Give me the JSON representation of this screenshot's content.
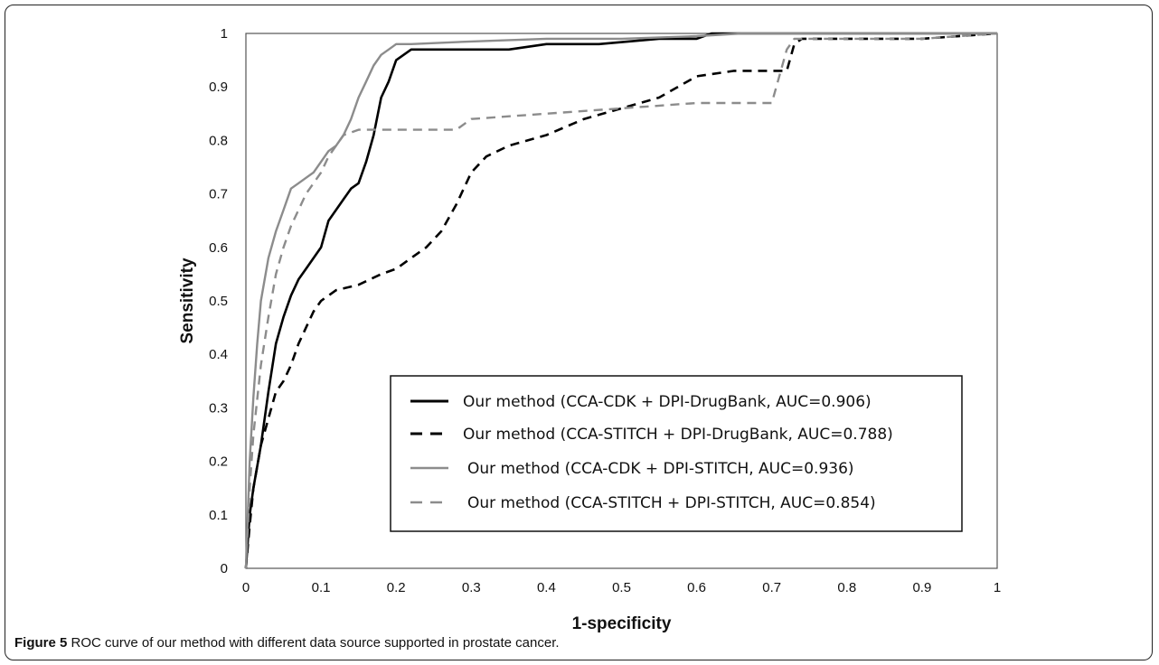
{
  "caption": {
    "label": "Figure 5",
    "text": "ROC curve of our method with different data source supported in prostate cancer."
  },
  "chart_data": {
    "type": "line",
    "title": "",
    "xlabel": "1-specificity",
    "ylabel": "Sensitivity",
    "xlim": [
      0,
      1
    ],
    "ylim": [
      0,
      1
    ],
    "xticks": [
      "0",
      "0.1",
      "0.2",
      "0.3",
      "0.4",
      "0.5",
      "0.6",
      "0.7",
      "0.8",
      "0.9",
      "1"
    ],
    "yticks": [
      "0",
      "0.1",
      "0.2",
      "0.3",
      "0.4",
      "0.5",
      "0.6",
      "0.7",
      "0.8",
      "0.9",
      "1"
    ],
    "grid": false,
    "legend_position": "bottom-right",
    "series": [
      {
        "name": "Our method (CCA-CDK + DPI-DrugBank, AUC=0.906)",
        "color": "#000000",
        "dash": "solid",
        "x": [
          0,
          0.005,
          0.01,
          0.02,
          0.03,
          0.04,
          0.05,
          0.06,
          0.07,
          0.08,
          0.09,
          0.1,
          0.11,
          0.12,
          0.13,
          0.14,
          0.15,
          0.16,
          0.17,
          0.18,
          0.19,
          0.2,
          0.21,
          0.22,
          0.25,
          0.3,
          0.35,
          0.4,
          0.47,
          0.55,
          0.6,
          0.62,
          0.65,
          0.7,
          1.0
        ],
        "y": [
          0,
          0.1,
          0.15,
          0.23,
          0.33,
          0.42,
          0.47,
          0.51,
          0.54,
          0.56,
          0.58,
          0.6,
          0.65,
          0.67,
          0.69,
          0.71,
          0.72,
          0.76,
          0.81,
          0.88,
          0.91,
          0.95,
          0.96,
          0.97,
          0.97,
          0.97,
          0.97,
          0.98,
          0.98,
          0.99,
          0.99,
          1.0,
          1.0,
          1.0,
          1.0
        ]
      },
      {
        "name": "Our method (CCA-STITCH + DPI-DrugBank, AUC=0.788)",
        "color": "#000000",
        "dash": "dashed",
        "x": [
          0,
          0.005,
          0.01,
          0.02,
          0.03,
          0.04,
          0.05,
          0.06,
          0.07,
          0.08,
          0.09,
          0.1,
          0.12,
          0.15,
          0.18,
          0.2,
          0.22,
          0.24,
          0.26,
          0.28,
          0.3,
          0.32,
          0.35,
          0.4,
          0.45,
          0.5,
          0.55,
          0.6,
          0.65,
          0.72,
          0.73,
          0.74,
          0.8,
          0.9,
          1.0
        ],
        "y": [
          0,
          0.08,
          0.15,
          0.23,
          0.28,
          0.33,
          0.35,
          0.38,
          0.42,
          0.45,
          0.48,
          0.5,
          0.52,
          0.53,
          0.55,
          0.56,
          0.58,
          0.6,
          0.63,
          0.68,
          0.74,
          0.77,
          0.79,
          0.81,
          0.84,
          0.86,
          0.88,
          0.92,
          0.93,
          0.93,
          0.98,
          0.99,
          0.99,
          0.99,
          1.0
        ]
      },
      {
        "name": "Our method (CCA-CDK + DPI-STITCH, AUC=0.936)",
        "color": "#8c8c8c",
        "dash": "solid",
        "x": [
          0,
          0.005,
          0.01,
          0.015,
          0.02,
          0.03,
          0.04,
          0.05,
          0.06,
          0.07,
          0.08,
          0.09,
          0.1,
          0.11,
          0.12,
          0.13,
          0.14,
          0.15,
          0.16,
          0.17,
          0.18,
          0.19,
          0.2,
          0.22,
          0.3,
          0.4,
          0.5,
          0.6,
          0.66,
          0.72,
          0.8,
          1.0
        ],
        "y": [
          0,
          0.2,
          0.32,
          0.42,
          0.5,
          0.58,
          0.63,
          0.67,
          0.71,
          0.72,
          0.73,
          0.74,
          0.76,
          0.78,
          0.79,
          0.81,
          0.84,
          0.88,
          0.91,
          0.94,
          0.96,
          0.97,
          0.98,
          0.98,
          0.985,
          0.99,
          0.99,
          0.995,
          1.0,
          1.0,
          1.0,
          1.0
        ]
      },
      {
        "name": "Our method (CCA-STITCH + DPI-STITCH, AUC=0.854)",
        "color": "#8c8c8c",
        "dash": "dashed",
        "x": [
          0,
          0.005,
          0.01,
          0.02,
          0.03,
          0.04,
          0.05,
          0.06,
          0.07,
          0.08,
          0.09,
          0.1,
          0.11,
          0.12,
          0.13,
          0.15,
          0.2,
          0.28,
          0.3,
          0.4,
          0.5,
          0.6,
          0.7,
          0.71,
          0.72,
          0.73,
          0.8,
          0.9,
          1.0
        ],
        "y": [
          0,
          0.15,
          0.25,
          0.38,
          0.47,
          0.55,
          0.6,
          0.64,
          0.67,
          0.7,
          0.72,
          0.74,
          0.77,
          0.79,
          0.81,
          0.82,
          0.82,
          0.82,
          0.84,
          0.85,
          0.86,
          0.87,
          0.87,
          0.92,
          0.97,
          0.99,
          0.99,
          0.99,
          1.0
        ]
      }
    ]
  }
}
